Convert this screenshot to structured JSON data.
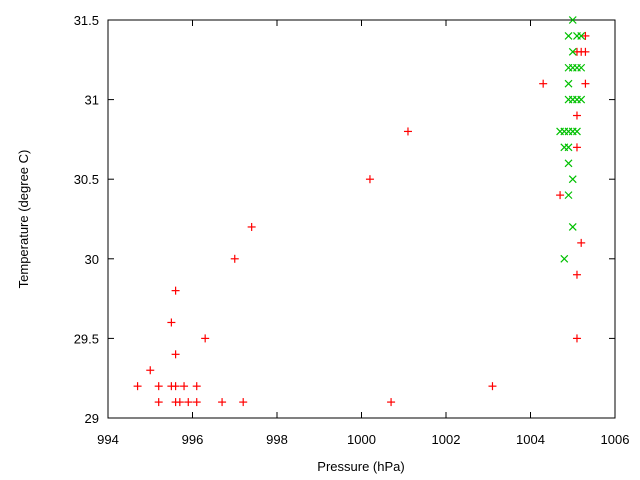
{
  "chart_data": {
    "type": "scatter",
    "title": "",
    "xlabel": "Pressure (hPa)",
    "ylabel": "Temperature (degree C)",
    "xlim": [
      994,
      1006
    ],
    "ylim": [
      29,
      31.5
    ],
    "xticks": [
      994,
      996,
      998,
      1000,
      1002,
      1004,
      1006
    ],
    "xtick_labels": [
      "994",
      "996",
      "998",
      "1000",
      "1002",
      "1004",
      "1006"
    ],
    "yticks": [
      29,
      29.5,
      30,
      30.5,
      31,
      31.5
    ],
    "ytick_labels": [
      "29",
      "29.5",
      "30",
      "30.5",
      "31",
      "31.5"
    ],
    "grid": false,
    "legend": "none",
    "series": [
      {
        "marker": "plus",
        "color": "#ff0000",
        "points": [
          [
            994.7,
            29.2
          ],
          [
            995.2,
            29.2
          ],
          [
            995.5,
            29.2
          ],
          [
            995.6,
            29.2
          ],
          [
            995.8,
            29.2
          ],
          [
            996.1,
            29.2
          ],
          [
            995.2,
            29.1
          ],
          [
            995.6,
            29.1
          ],
          [
            995.7,
            29.1
          ],
          [
            995.9,
            29.1
          ],
          [
            996.1,
            29.1
          ],
          [
            996.7,
            29.1
          ],
          [
            997.2,
            29.1
          ],
          [
            1000.7,
            29.1
          ],
          [
            1003.1,
            29.2
          ],
          [
            995.0,
            29.3
          ],
          [
            995.6,
            29.4
          ],
          [
            996.3,
            29.5
          ],
          [
            995.5,
            29.6
          ],
          [
            995.6,
            29.8
          ],
          [
            997.0,
            30.0
          ],
          [
            997.4,
            30.2
          ],
          [
            1000.2,
            30.5
          ],
          [
            1001.1,
            30.8
          ],
          [
            1004.3,
            31.1
          ],
          [
            1005.1,
            29.5
          ],
          [
            1005.1,
            29.9
          ],
          [
            1005.2,
            30.1
          ],
          [
            1004.7,
            30.4
          ],
          [
            1005.1,
            30.7
          ],
          [
            1005.1,
            30.9
          ],
          [
            1005.3,
            31.1
          ],
          [
            1005.1,
            31.3
          ],
          [
            1005.2,
            31.3
          ],
          [
            1005.3,
            31.3
          ],
          [
            1005.3,
            31.4
          ]
        ]
      },
      {
        "marker": "cross",
        "color": "#00c000",
        "points": [
          [
            1005.0,
            31.5
          ],
          [
            1004.9,
            31.4
          ],
          [
            1005.1,
            31.4
          ],
          [
            1005.2,
            31.4
          ],
          [
            1005.0,
            31.3
          ],
          [
            1004.9,
            31.2
          ],
          [
            1005.0,
            31.2
          ],
          [
            1005.1,
            31.2
          ],
          [
            1005.2,
            31.2
          ],
          [
            1004.9,
            31.1
          ],
          [
            1004.9,
            31.0
          ],
          [
            1005.0,
            31.0
          ],
          [
            1005.1,
            31.0
          ],
          [
            1005.2,
            31.0
          ],
          [
            1004.7,
            30.8
          ],
          [
            1004.8,
            30.8
          ],
          [
            1004.9,
            30.8
          ],
          [
            1005.0,
            30.8
          ],
          [
            1005.1,
            30.8
          ],
          [
            1004.8,
            30.7
          ],
          [
            1004.9,
            30.7
          ],
          [
            1004.9,
            30.6
          ],
          [
            1005.0,
            30.5
          ],
          [
            1004.9,
            30.4
          ],
          [
            1005.0,
            30.2
          ],
          [
            1004.8,
            30.0
          ]
        ]
      }
    ]
  }
}
